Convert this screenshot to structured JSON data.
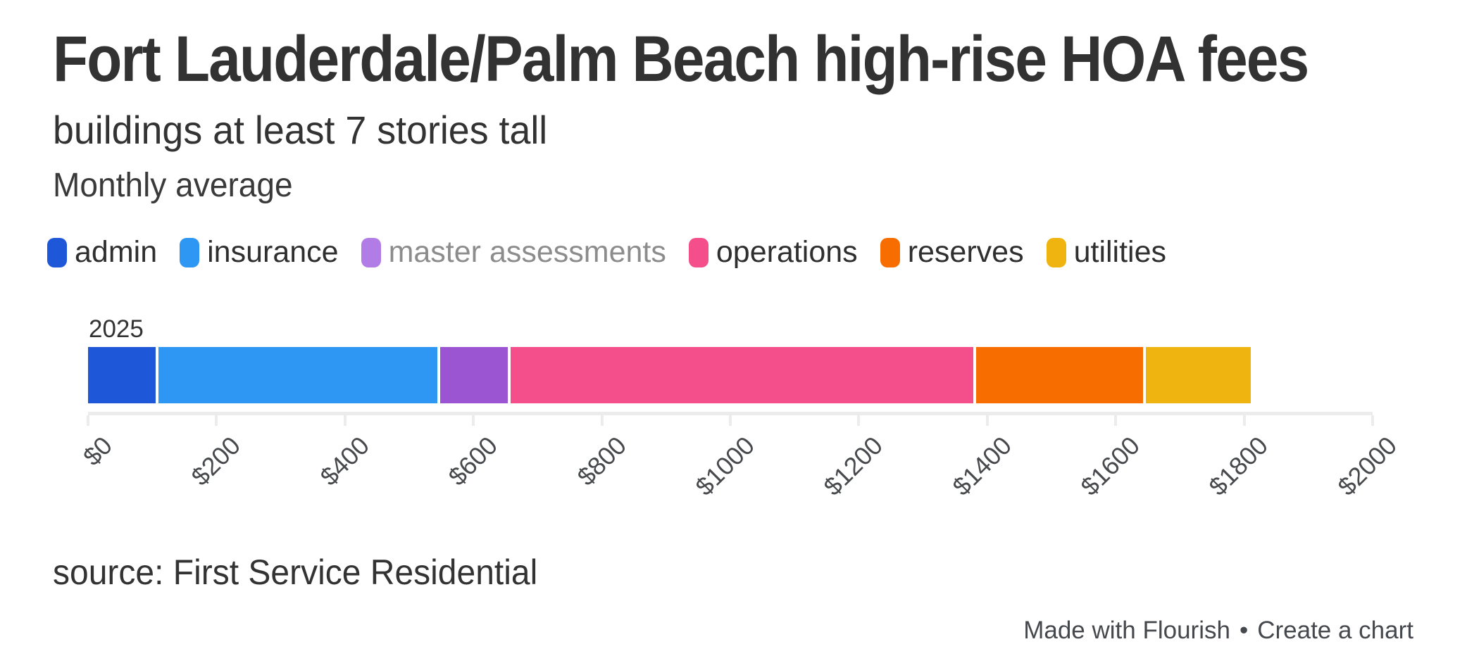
{
  "header": {
    "title": "Fort Lauderdale/Palm Beach high-rise HOA fees",
    "subtitle": "buildings at least 7 stories tall",
    "caption": "Monthly average"
  },
  "chart_data": {
    "type": "bar",
    "stacked": true,
    "orientation": "horizontal",
    "categories": [
      "2025"
    ],
    "series": [
      {
        "name": "admin",
        "values": [
          108
        ],
        "color": "#1e57d8"
      },
      {
        "name": "insurance",
        "values": [
          438
        ],
        "color": "#2e96f3"
      },
      {
        "name": "master assessments",
        "values": [
          110
        ],
        "color": "#9b54d2",
        "legend_dimmed": true,
        "legend_color": "#b27ce6"
      },
      {
        "name": "operations",
        "values": [
          725
        ],
        "color": "#f44f8a"
      },
      {
        "name": "reserves",
        "values": [
          264
        ],
        "color": "#f86d00"
      },
      {
        "name": "utilities",
        "values": [
          167
        ],
        "color": "#efb410"
      }
    ],
    "total": 1812,
    "xlabel": "",
    "ylabel": "",
    "axis": {
      "min": 0,
      "max": 2000,
      "step": 200,
      "tick_labels": [
        "$0",
        "$200",
        "$400",
        "$600",
        "$800",
        "$1000",
        "$1200",
        "$1400",
        "$1600",
        "$1800",
        "$2000"
      ],
      "label_rotation": -45
    },
    "legend_position": "top",
    "grid": false,
    "colors": {
      "axis_line": "#ececec",
      "tick_label": "#47494c",
      "text": "#333333",
      "dimmed_legend_label": "#8c8c8c"
    }
  },
  "footer": {
    "source": "source: First Service Residential",
    "credit_left": "Made with Flourish",
    "credit_separator": "•",
    "credit_right": "Create a chart"
  }
}
